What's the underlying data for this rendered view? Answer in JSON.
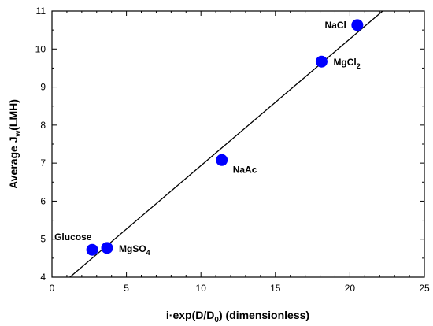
{
  "chart_data": {
    "type": "scatter",
    "xlabel": {
      "text": "i·exp(D/D",
      "sub": "0",
      "tail": ") (dimensionless)"
    },
    "ylabel": {
      "text": "Average J",
      "sub": "w",
      "tail": "(LMH)"
    },
    "xlim": [
      0,
      25
    ],
    "ylim": [
      4,
      11
    ],
    "xticks": [
      0,
      5,
      10,
      15,
      20,
      25
    ],
    "yticks": [
      4,
      5,
      6,
      7,
      8,
      9,
      10,
      11
    ],
    "grid": false,
    "marker_color": "#0000ff",
    "points": [
      {
        "x": 2.7,
        "y": 4.72,
        "label": "Glucose",
        "sub": "",
        "label_pos": "above-left"
      },
      {
        "x": 3.7,
        "y": 4.77,
        "label": "MgSO",
        "sub": "4",
        "label_pos": "right"
      },
      {
        "x": 11.4,
        "y": 7.08,
        "label": "NaAc",
        "sub": "",
        "label_pos": "below-right"
      },
      {
        "x": 18.1,
        "y": 9.67,
        "label": "MgCl",
        "sub": "2",
        "label_pos": "right"
      },
      {
        "x": 20.5,
        "y": 10.63,
        "label": "NaCl",
        "sub": "",
        "label_pos": "left"
      }
    ],
    "fit_line": {
      "x": [
        1.2,
        22.2
      ],
      "y": [
        4.0,
        11.0
      ]
    }
  }
}
